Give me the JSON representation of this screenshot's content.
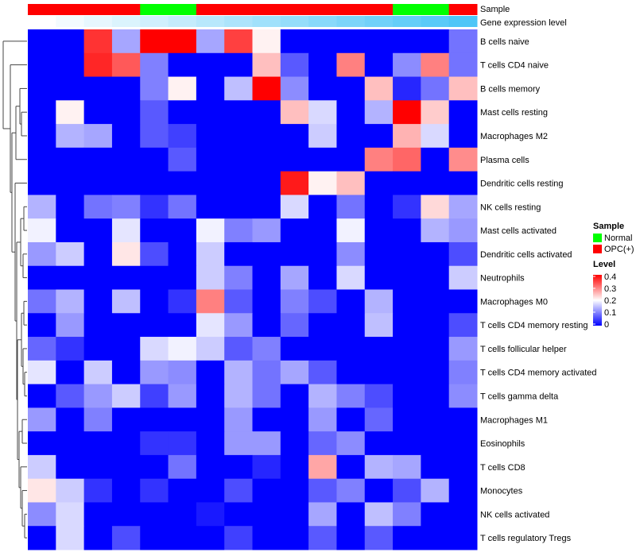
{
  "chart_data": {
    "type": "heatmap",
    "annotation_labels": {
      "sample": "Sample",
      "gene_level": "Gene expression level"
    },
    "sample_groups": [
      "OPC(+)",
      "OPC(+)",
      "OPC(+)",
      "OPC(+)",
      "Normal",
      "Normal",
      "OPC(+)",
      "OPC(+)",
      "OPC(+)",
      "OPC(+)",
      "OPC(+)",
      "OPC(+)",
      "OPC(+)",
      "Normal",
      "Normal",
      "OPC(+)"
    ],
    "gene_expression_level": [
      0,
      1,
      2,
      3,
      4,
      5,
      6,
      7,
      8,
      9,
      10,
      11,
      12,
      13,
      14,
      15
    ],
    "rows": [
      "B cells naive",
      "T cells CD4 naive",
      "B cells memory",
      "Mast cells resting",
      "Macrophages M2",
      "Plasma cells",
      "Dendritic cells resting",
      "NK cells resting",
      "Mast cells activated",
      "Dendritic cells activated",
      "Neutrophils",
      "Macrophages M0",
      "T cells CD4 memory resting",
      "T cells follicular helper",
      "T cells CD4 memory activated",
      "T cells gamma delta",
      "Macrophages M1",
      "Eosinophils",
      "T cells CD8",
      "Monocytes",
      "NK cells activated",
      "T cells regulatory  Tregs"
    ],
    "values": [
      [
        0,
        0,
        0.36,
        0.13,
        0.4,
        0.4,
        0.13,
        0.35,
        0.21,
        0,
        0,
        0,
        0,
        0,
        0,
        0.09
      ],
      [
        0,
        0,
        0.37,
        0.33,
        0.1,
        0,
        0,
        0,
        0.25,
        0.07,
        0,
        0.3,
        0,
        0.11,
        0.3,
        0.09
      ],
      [
        0,
        0,
        0,
        0,
        0.1,
        0.21,
        0,
        0.15,
        0.4,
        0.11,
        0,
        0,
        0.25,
        0.03,
        0.09,
        0.25
      ],
      [
        0,
        0.21,
        0,
        0,
        0.07,
        0,
        0,
        0,
        0,
        0.25,
        0.17,
        0,
        0.14,
        0.4,
        0.24,
        0
      ],
      [
        0,
        0.14,
        0.13,
        0,
        0.07,
        0.05,
        0,
        0,
        0,
        0,
        0.16,
        0,
        0,
        0.26,
        0.17,
        0
      ],
      [
        0,
        0,
        0,
        0,
        0,
        0.07,
        0,
        0,
        0,
        0,
        0,
        0,
        0.3,
        0.32,
        0,
        0.29
      ],
      [
        0,
        0,
        0,
        0,
        0,
        0,
        0,
        0,
        0,
        0.38,
        0.21,
        0.25,
        0,
        0,
        0,
        0
      ],
      [
        0.14,
        0,
        0.09,
        0.1,
        0.04,
        0.09,
        0,
        0,
        0,
        0.17,
        0,
        0.09,
        0,
        0.04,
        0.23,
        0.13
      ],
      [
        0.19,
        0,
        0,
        0.18,
        0,
        0,
        0.19,
        0.1,
        0.12,
        0,
        0,
        0.19,
        0,
        0,
        0.14,
        0.12
      ],
      [
        0.12,
        0.16,
        0,
        0.22,
        0.06,
        0,
        0.16,
        0,
        0,
        0,
        0,
        0.11,
        0,
        0,
        0,
        0.06
      ],
      [
        0,
        0,
        0,
        0,
        0,
        0,
        0.16,
        0.1,
        0,
        0.13,
        0,
        0.17,
        0,
        0,
        0,
        0.16
      ],
      [
        0.09,
        0.14,
        0,
        0.15,
        0,
        0.04,
        0.3,
        0.07,
        0,
        0.1,
        0.06,
        0,
        0.14,
        0,
        0,
        0
      ],
      [
        0,
        0.12,
        0,
        0,
        0,
        0,
        0.18,
        0.12,
        0,
        0.08,
        0,
        0,
        0.15,
        0,
        0,
        0.06
      ],
      [
        0.08,
        0.04,
        0,
        0,
        0.17,
        0.19,
        0.16,
        0.07,
        0.1,
        0,
        0,
        0,
        0,
        0,
        0,
        0.12
      ],
      [
        0.18,
        0,
        0.16,
        0,
        0.12,
        0.11,
        0,
        0.14,
        0.09,
        0.13,
        0.07,
        0,
        0,
        0,
        0,
        0.1
      ],
      [
        0,
        0.07,
        0.12,
        0.16,
        0.05,
        0.12,
        0,
        0.14,
        0.09,
        0,
        0.14,
        0.1,
        0.06,
        0,
        0,
        0.11
      ],
      [
        0.12,
        0,
        0.1,
        0,
        0,
        0,
        0,
        0.12,
        0,
        0,
        0.12,
        0,
        0.08,
        0,
        0,
        0
      ],
      [
        0,
        0,
        0,
        0,
        0.04,
        0.04,
        0,
        0.12,
        0.12,
        0,
        0.08,
        0.11,
        0,
        0,
        0,
        0
      ],
      [
        0.16,
        0,
        0,
        0,
        0,
        0.09,
        0,
        0,
        0.03,
        0,
        0.27,
        0,
        0.14,
        0.13,
        0,
        0
      ],
      [
        0.22,
        0.16,
        0.04,
        0,
        0.04,
        0,
        0,
        0.06,
        0,
        0,
        0.07,
        0.1,
        0,
        0.06,
        0.14,
        0
      ],
      [
        0.11,
        0.17,
        0,
        0,
        0,
        0,
        0.02,
        0,
        0,
        0,
        0.13,
        0,
        0.15,
        0.1,
        0,
        0
      ],
      [
        0,
        0.17,
        0,
        0.06,
        0,
        0,
        0,
        0.05,
        0,
        0,
        0.07,
        0,
        0.07,
        0,
        0,
        0
      ]
    ],
    "color_range": [
      0,
      0.4
    ],
    "colors": {
      "low": "#0000ff",
      "mid": "#ffffff",
      "high": "#ff0000",
      "normal": "#00ff00",
      "opc": "#ff0000",
      "level_low": "#ffffff",
      "level_high": "#4dc6f7"
    },
    "legend": {
      "sample_title": "Sample",
      "sample_entries": [
        "Normal",
        "OPC(+)"
      ],
      "level_title": "Level",
      "level_ticks": [
        "0.4",
        "0.3",
        "0.2",
        "0.1",
        "0"
      ],
      "placement": "right"
    }
  }
}
